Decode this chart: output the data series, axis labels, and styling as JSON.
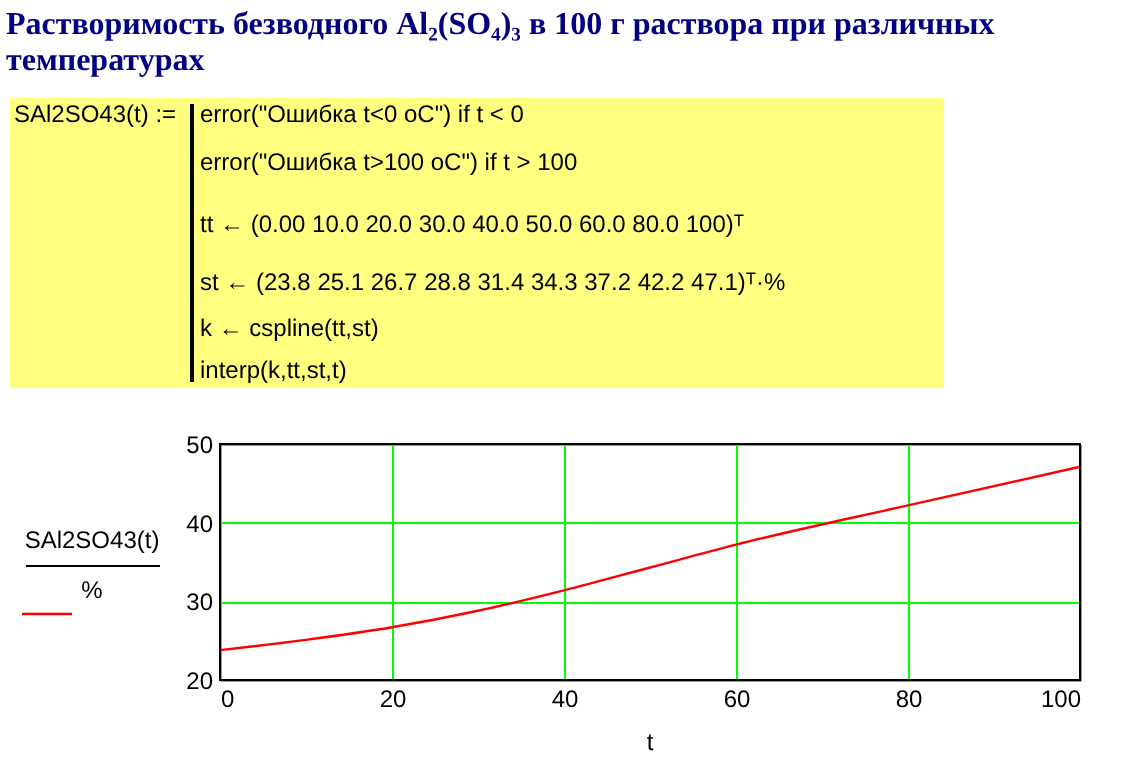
{
  "chart_data": {
    "type": "line",
    "title": "Растворимость безводного Al₂(SO₄)₃ в 100 г раствора при различных температурах",
    "annotations": [
      "SAl2SO43(t) :=",
      "error(\"Ошибка t<0 oC\")  if  t < 0",
      "error(\"Ошибка t>100 oC\")  if  t > 100",
      "tt ← (0.00  10.0  20.0  30.0  40.0  50.0  60.0  80.0  100)ᵀ",
      "st ← (23.8  25.1  26.7  28.8  31.4  34.3  37.2  42.2  47.1)ᵀ·%",
      "k ← cspline(tt,st)",
      "interp(k,tt,st,t)"
    ],
    "xlabel": "t",
    "ylabel": "SAl2SO43(t)\n%",
    "x": [
      0,
      10,
      20,
      30,
      40,
      50,
      60,
      80,
      100
    ],
    "series": [
      {
        "color": "#ff0000",
        "values": [
          23.8,
          25.1,
          26.7,
          28.8,
          31.4,
          34.3,
          37.2,
          42.2,
          47.1
        ]
      }
    ],
    "xlim": [
      0,
      100
    ],
    "xticks": [
      0,
      20,
      40,
      60,
      80,
      100
    ],
    "ylim": [
      20,
      50
    ],
    "yticks": [
      20,
      30,
      40,
      50
    ],
    "grid": true,
    "marker": "none",
    "line_style": "solid"
  }
}
